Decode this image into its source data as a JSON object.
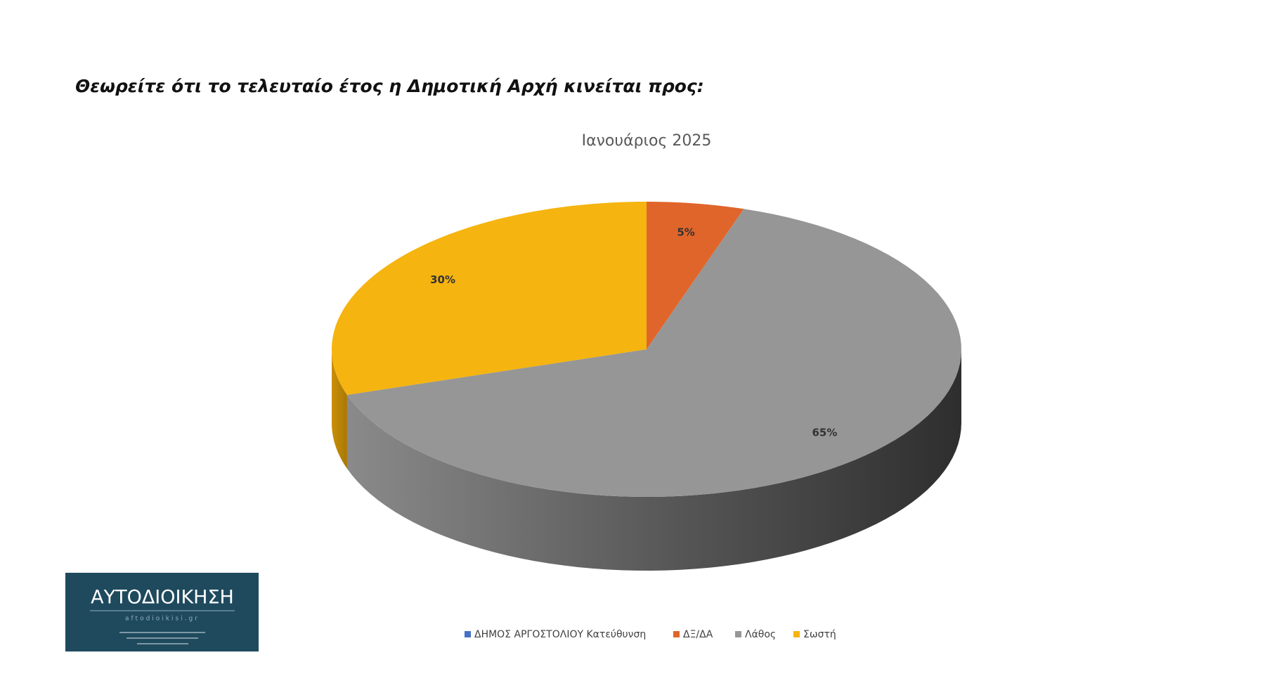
{
  "chart_data": {
    "type": "pie3d",
    "title": "Θεωρείτε ότι το τελευταίο έτος η Δημοτική Αρχή κινείται προς:",
    "subtitle": "Ιανουάριος  2025",
    "categories": [
      "ΔΗΜΟΣ ΑΡΓΟΣΤΟΛΙΟΥ Κατεύθυνση",
      "ΔΞ/ΔΑ",
      "Λάθος",
      "Σωστή"
    ],
    "values": [
      null,
      5,
      65,
      30
    ],
    "value_labels": [
      null,
      "5%",
      "65%",
      "30%"
    ],
    "colors": [
      "#4472c4",
      "#e0652a",
      "#969696",
      "#f5b40f"
    ],
    "legend": "bottom"
  },
  "logo": {
    "title": "ΑΥΤΟΔΙΟΙΚΗΣΗ",
    "url": "aftodioikisi.gr"
  }
}
